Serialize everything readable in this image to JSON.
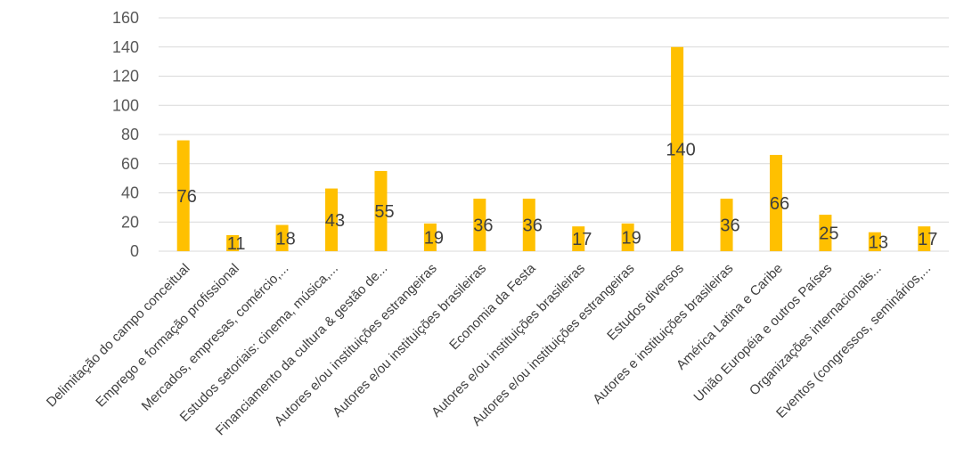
{
  "chart_data": {
    "type": "bar",
    "categories": [
      "Delimitação do campo conceitual",
      "Emprego e formação profissional",
      "Mercados, empresas, comércio,...",
      "Estudos setoriais: cinema, música,...",
      "Financiamento da cultura & gestão de...",
      "Autores e/ou instituições estrangeiras",
      "Autores e/ou instituições brasileiras",
      "Economia da Festa",
      "Autores e/ou instituições brasileiras",
      "Autores e/ou instituições estrangeiras",
      "Estudos diversos",
      "Autores e instituições brasileiras",
      "América Latina e Caribe",
      "União Européia e outros Países",
      "Organizações internacionais...",
      "Eventos (congressos, seminários,..."
    ],
    "values": [
      76,
      11,
      18,
      43,
      55,
      19,
      36,
      36,
      17,
      19,
      140,
      36,
      66,
      25,
      13,
      17
    ],
    "data_labels": [
      "76",
      "11",
      "18",
      "43",
      "55",
      "19",
      "36",
      "36",
      "17",
      "19",
      "140",
      "36",
      "66",
      "25",
      "13",
      "17"
    ],
    "y_ticks": [
      "0",
      "20",
      "40",
      "60",
      "80",
      "100",
      "120",
      "140",
      "160"
    ],
    "ylim": [
      0,
      160
    ],
    "grid": true,
    "legend": "none",
    "title": "",
    "xlabel": "",
    "ylabel": "",
    "colors": {
      "bar": "#FFC000",
      "grid": "#D9D9D9",
      "text": "#404040",
      "axis_text": "#595959"
    }
  }
}
